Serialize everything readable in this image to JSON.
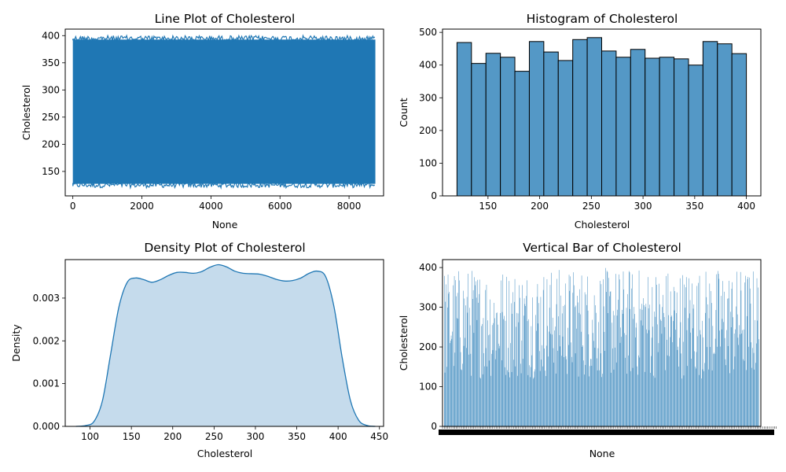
{
  "colors": {
    "primary": "#1f77b4",
    "hist_fill": "#5498c6",
    "density_fill": "#c5dbec",
    "edge": "#000000"
  },
  "chart_data": [
    {
      "type": "line",
      "title": "Line Plot of Cholesterol",
      "xlabel": "None",
      "ylabel": "Cholesterol",
      "xlim": [
        -220,
        9000
      ],
      "ylim": [
        105,
        412
      ],
      "xticks": [
        0,
        2000,
        4000,
        6000,
        8000
      ],
      "yticks": [
        150,
        200,
        250,
        300,
        350,
        400
      ],
      "grid": false,
      "series": [
        {
          "n_points": 8763,
          "x_range": [
            0,
            8762
          ],
          "y_range": [
            120,
            400
          ]
        }
      ]
    },
    {
      "type": "bar",
      "title": "Histogram of Cholesterol",
      "xlabel": "Cholesterol",
      "ylabel": "Count",
      "xlim": [
        106,
        414
      ],
      "ylim": [
        0,
        510
      ],
      "xticks": [
        150,
        200,
        250,
        300,
        350,
        400
      ],
      "yticks": [
        0,
        100,
        200,
        300,
        400,
        500
      ],
      "grid": false,
      "bins": [
        [
          120,
          134
        ],
        [
          134,
          148
        ],
        [
          148,
          162
        ],
        [
          162,
          176
        ],
        [
          176,
          190
        ],
        [
          190,
          204
        ],
        [
          204,
          218
        ],
        [
          218,
          232
        ],
        [
          232,
          246
        ],
        [
          246,
          260
        ],
        [
          260,
          274
        ],
        [
          274,
          288
        ],
        [
          288,
          302
        ],
        [
          302,
          316
        ],
        [
          316,
          330
        ],
        [
          330,
          344
        ],
        [
          344,
          358
        ],
        [
          358,
          372
        ],
        [
          372,
          386
        ],
        [
          386,
          400
        ]
      ],
      "values": [
        469,
        405,
        436,
        424,
        381,
        472,
        440,
        414,
        478,
        484,
        443,
        424,
        448,
        421,
        424,
        419,
        400,
        472,
        465,
        435
      ]
    },
    {
      "type": "area",
      "title": "Density Plot of Cholesterol",
      "xlabel": "Cholesterol",
      "ylabel": "Density",
      "xlim": [
        70,
        455
      ],
      "ylim": [
        0,
        0.0039
      ],
      "xticks": [
        100,
        150,
        200,
        250,
        300,
        350,
        400,
        450
      ],
      "yticks": [
        0.0,
        0.001,
        0.002,
        0.003
      ],
      "ytick_labels": [
        "0.000",
        "0.001",
        "0.002",
        "0.003"
      ],
      "grid": false,
      "x": [
        83,
        95,
        105,
        115,
        125,
        135,
        145,
        155,
        165,
        175,
        185,
        195,
        205,
        215,
        225,
        235,
        245,
        255,
        265,
        275,
        285,
        295,
        305,
        315,
        325,
        335,
        345,
        355,
        365,
        375,
        385,
        395,
        405,
        415,
        425,
        435,
        445
      ],
      "y": [
        0.0,
        2e-05,
        0.00012,
        0.0006,
        0.0017,
        0.0028,
        0.00337,
        0.00347,
        0.00343,
        0.00337,
        0.00343,
        0.00353,
        0.0036,
        0.0036,
        0.00358,
        0.00362,
        0.00372,
        0.00378,
        0.00373,
        0.00363,
        0.00358,
        0.00357,
        0.00356,
        0.00351,
        0.00344,
        0.0034,
        0.00341,
        0.00347,
        0.00358,
        0.00363,
        0.0035,
        0.0028,
        0.0016,
        0.0006,
        0.00014,
        2e-05,
        0.0
      ]
    },
    {
      "type": "bar",
      "title": "Vertical Bar of Cholesterol",
      "xlabel": "None",
      "ylabel": "Cholesterol",
      "ylim": [
        0,
        420
      ],
      "yticks": [
        0,
        100,
        200,
        300,
        400
      ],
      "grid": false,
      "orientation": "vertical",
      "n_bars": 8763,
      "value_range": [
        120,
        400
      ]
    }
  ]
}
